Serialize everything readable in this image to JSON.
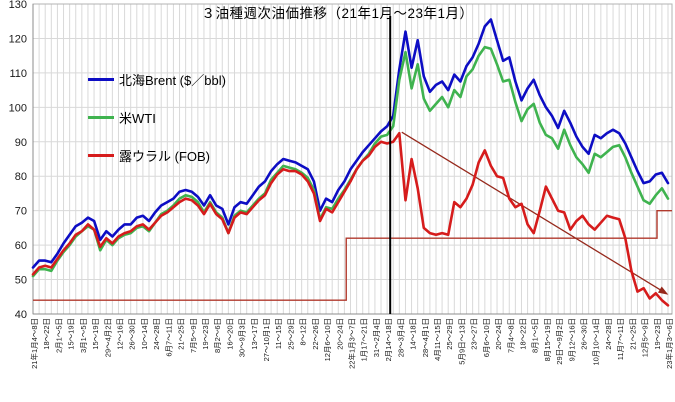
{
  "chart_data": {
    "type": "line",
    "title": "３油種週次油価推移（21年1月～23年1月）",
    "x_axis": {
      "n_points": 105,
      "label_every_n_points": 2,
      "tick_labels": [
        "21年1月4～8日",
        "18～22日",
        "2月1～5日",
        "15～19日",
        "3月1～5日",
        "15～19日",
        "29～4月2日",
        "12～16日",
        "26～30日",
        "10～14日",
        "24～28日",
        "6月7～11日",
        "21～25日",
        "7月5～9日",
        "19～23日",
        "8月2～6日",
        "16～20日",
        "30～9月3日",
        "13～17日",
        "27～10月1日",
        "11～15日",
        "25～29日",
        "8～12日",
        "22～26日",
        "12月6～10日",
        "20～24日",
        "22年1月3～7日",
        "1月17～21日",
        "31～2月4日",
        "2月14～18日",
        "28～3月4日",
        "14～18日",
        "28～4月1日",
        "4月11～15日",
        "25～29日",
        "5月9日～13日",
        "23～27日",
        "6月6～10日",
        "20～24日",
        "7月4～8日",
        "18～22日",
        "8月1～5日",
        "8月15～19日",
        "29日～9月2日",
        "9月12～16日",
        "26～30日",
        "10月10～14日",
        "24～28日",
        "11月7～11日",
        "21～25日",
        "12月5～9日",
        "19～23日",
        "23年1月3～6日"
      ]
    },
    "y_axis": {
      "min": 40,
      "max": 130,
      "tick_step": 10,
      "ticks": [
        40,
        50,
        60,
        70,
        80,
        90,
        100,
        110,
        120,
        130
      ],
      "unit": "$/bbl"
    },
    "grid": {
      "vertical": "weekly",
      "horizontal": "every 10"
    },
    "legend_position": "upper-left",
    "series": [
      {
        "name": "北海Brent ($／bbl)",
        "color": "#0d0dc4",
        "values": [
          53.5,
          55.5,
          55.5,
          55,
          57.5,
          60.5,
          63,
          65.5,
          66.5,
          68,
          67,
          61.5,
          64,
          62.5,
          64.5,
          66,
          66,
          68,
          68.5,
          67,
          69.5,
          71.5,
          72.5,
          73.5,
          75.5,
          76,
          75.5,
          74,
          71.5,
          74.5,
          71.5,
          70.5,
          66,
          71,
          72.5,
          72,
          74.5,
          77,
          78.5,
          81.5,
          83.5,
          85,
          84.5,
          84,
          83,
          82,
          78.5,
          70,
          73.5,
          72.5,
          76,
          78.5,
          82,
          84.5,
          87,
          89,
          91,
          93,
          94.5,
          97.5,
          111,
          122,
          111.5,
          119.5,
          109,
          104.5,
          106.5,
          107.5,
          105,
          109.5,
          107.5,
          112,
          114.5,
          118.5,
          123.5,
          125.5,
          119.5,
          113.5,
          114.5,
          107.5,
          102,
          105.5,
          108,
          103.5,
          100,
          97.5,
          94,
          99,
          95.5,
          91.5,
          88.5,
          86.5,
          92,
          91,
          92.5,
          93.5,
          92.5,
          89.5,
          85.5,
          81.5,
          78,
          78.5,
          80.5,
          81,
          78
        ]
      },
      {
        "name": "米WTI",
        "color": "#3fb34f",
        "values": [
          51,
          53,
          53,
          52.5,
          55.5,
          58,
          60,
          62.5,
          64,
          65.5,
          64.5,
          58.5,
          61.5,
          60,
          62,
          63,
          63.5,
          65,
          65.5,
          64,
          66.5,
          69,
          70,
          71.5,
          73.5,
          74.5,
          74,
          72.5,
          69.5,
          72.5,
          69.5,
          68,
          63.5,
          68.5,
          70,
          69.5,
          71.5,
          73.5,
          75,
          79,
          81,
          83,
          82.5,
          82,
          81,
          79.5,
          76,
          67.5,
          71,
          70.5,
          73.5,
          76,
          79,
          82,
          84.5,
          86.5,
          89.5,
          91.5,
          92,
          94.5,
          108,
          116,
          105.5,
          112.5,
          102.5,
          99,
          101,
          103,
          100,
          105,
          103,
          109,
          111,
          115,
          117.5,
          117,
          112.5,
          107.5,
          108,
          101.5,
          96,
          99.5,
          101,
          95.5,
          92,
          91,
          88,
          93.5,
          89,
          85.5,
          83.5,
          81,
          86.5,
          85.5,
          87,
          88.5,
          89,
          85.5,
          81,
          77,
          73,
          72,
          74.5,
          76.5,
          73.5
        ]
      },
      {
        "name": "露ウラル (FOB)",
        "color": "#d61c1c",
        "values": [
          51.5,
          53.5,
          54,
          53.5,
          56,
          58.5,
          60.5,
          63,
          64,
          66,
          64.5,
          59.5,
          62,
          60.5,
          62.5,
          63.5,
          64,
          65.5,
          66,
          64.5,
          66.5,
          68.5,
          69.5,
          71,
          72.5,
          73.5,
          73,
          71.5,
          69,
          72,
          69,
          67.5,
          63.5,
          68,
          69.5,
          69,
          71,
          73,
          74.5,
          78,
          80.5,
          82,
          81.5,
          81.5,
          80.5,
          78.5,
          75,
          67,
          70.5,
          69.5,
          72.5,
          75.5,
          78.5,
          82,
          84.5,
          86,
          88.5,
          90,
          89.5,
          90,
          92.5,
          73,
          85,
          76.5,
          65,
          63.5,
          63,
          63.5,
          63,
          72.5,
          71,
          73.5,
          77.5,
          84,
          87.5,
          83,
          80,
          79.5,
          73.5,
          71,
          72,
          66,
          63.5,
          70,
          77,
          73.5,
          70,
          69.5,
          64.5,
          67,
          68.5,
          66,
          64.5,
          66.5,
          68.5,
          68,
          67.5,
          62,
          52.5,
          46.5,
          47.5,
          44.5,
          46,
          44,
          42.5
        ]
      }
    ],
    "annotations": {
      "event_vline": {
        "x_index": 58.5,
        "color": "#000000",
        "width": 2
      },
      "step_line": {
        "color": "#b0392c",
        "width": 1.4,
        "points_index_value": [
          [
            0,
            44
          ],
          [
            51.3,
            44
          ],
          [
            51.3,
            62
          ],
          [
            102.2,
            62
          ],
          [
            102.2,
            70
          ],
          [
            104.65,
            70
          ]
        ]
      },
      "trend_arrow": {
        "color": "#96291c",
        "width": 1.3,
        "from_index_value": [
          60.4,
          92.8
        ],
        "to_index_value": [
          103.5,
          46.2
        ]
      }
    },
    "style": {
      "grid_color": "#d9d9d9",
      "border_color": "#b3b3b3",
      "axis_color": "#8c8c8c",
      "text_color": "#1a1a1a",
      "background": "#ffffff"
    }
  }
}
